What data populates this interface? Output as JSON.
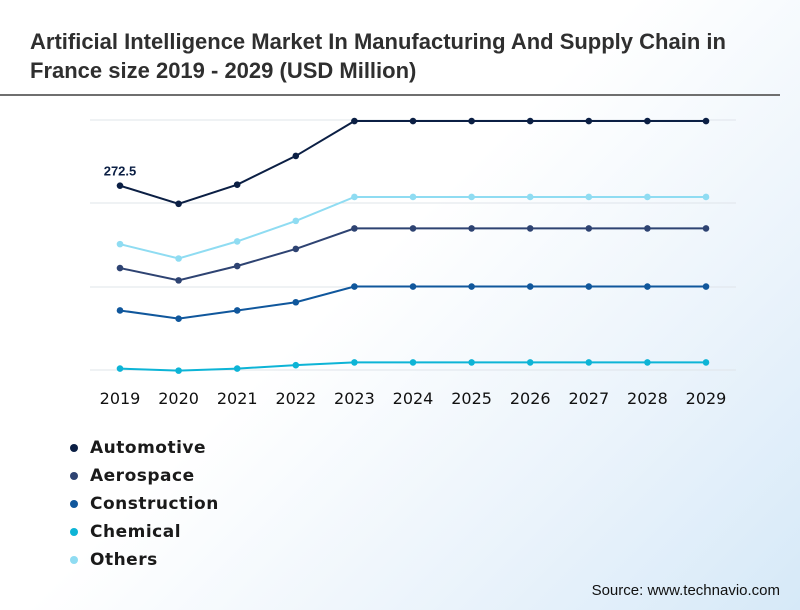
{
  "title": "Artificial Intelligence Market In Manufacturing And Supply Chain in France size 2019 - 2029 (USD Million)",
  "source": "Source: www.technavio.com",
  "chart_data": {
    "type": "line",
    "x": [
      "2019",
      "2020",
      "2021",
      "2022",
      "2023",
      "2024",
      "2025",
      "2026",
      "2027",
      "2028",
      "2029"
    ],
    "ylim": [
      0,
      370
    ],
    "grid": true,
    "legend_position": "bottom-left",
    "annotations": [
      {
        "series": "Automotive",
        "x": "2019",
        "label": "272.5"
      }
    ],
    "series": [
      {
        "name": "Automotive",
        "color": "#0b1f44",
        "values": [
          272.5,
          246,
          274,
          316,
          367,
          367,
          367,
          367,
          367,
          367,
          367
        ]
      },
      {
        "name": "Aerospace",
        "color": "#2e4372",
        "values": [
          152,
          134,
          155,
          180,
          210,
          210,
          210,
          210,
          210,
          210,
          210
        ]
      },
      {
        "name": "Construction",
        "color": "#10579c",
        "values": [
          90,
          78,
          90,
          102,
          125,
          125,
          125,
          125,
          125,
          125,
          125
        ]
      },
      {
        "name": "Chemical",
        "color": "#0db4d6",
        "values": [
          5,
          2,
          5,
          10,
          14,
          14,
          14,
          14,
          14,
          14,
          14
        ]
      },
      {
        "name": "Others",
        "color": "#8fdcf2",
        "values": [
          187,
          166,
          191,
          221,
          256,
          256,
          256,
          256,
          256,
          256,
          256
        ]
      }
    ]
  }
}
